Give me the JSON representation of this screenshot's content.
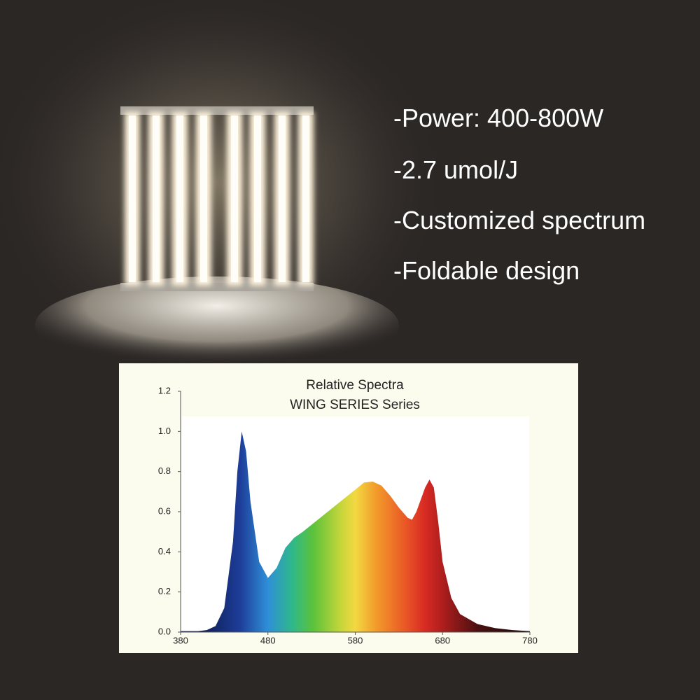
{
  "features": [
    "-Power: 400-800W",
    "-2.7 umol/J",
    "-Customized spectrum",
    "-Foldable design"
  ],
  "chart_data": {
    "type": "area",
    "title": "Relative Spectra",
    "subtitle": "WING SERIES Series",
    "x": [
      380,
      400,
      410,
      420,
      430,
      440,
      445,
      450,
      455,
      460,
      470,
      480,
      490,
      500,
      510,
      520,
      540,
      560,
      580,
      590,
      600,
      610,
      620,
      630,
      640,
      645,
      650,
      660,
      665,
      670,
      675,
      680,
      690,
      700,
      720,
      740,
      760,
      780
    ],
    "values": [
      0.005,
      0.005,
      0.01,
      0.03,
      0.12,
      0.45,
      0.8,
      1.0,
      0.9,
      0.65,
      0.35,
      0.27,
      0.32,
      0.42,
      0.47,
      0.5,
      0.57,
      0.64,
      0.71,
      0.745,
      0.75,
      0.73,
      0.68,
      0.62,
      0.57,
      0.56,
      0.6,
      0.72,
      0.76,
      0.72,
      0.55,
      0.35,
      0.17,
      0.09,
      0.04,
      0.02,
      0.01,
      0.005
    ],
    "xlim": [
      380,
      780
    ],
    "xticks": [
      380,
      480,
      580,
      680,
      780
    ],
    "ylim": [
      0,
      1.2
    ],
    "yticks": [
      {
        "value": 0,
        "label": "0.0"
      },
      0.2,
      0.4,
      0.6,
      0.8,
      {
        "value": 1,
        "label": "1.0"
      },
      1.2
    ]
  }
}
